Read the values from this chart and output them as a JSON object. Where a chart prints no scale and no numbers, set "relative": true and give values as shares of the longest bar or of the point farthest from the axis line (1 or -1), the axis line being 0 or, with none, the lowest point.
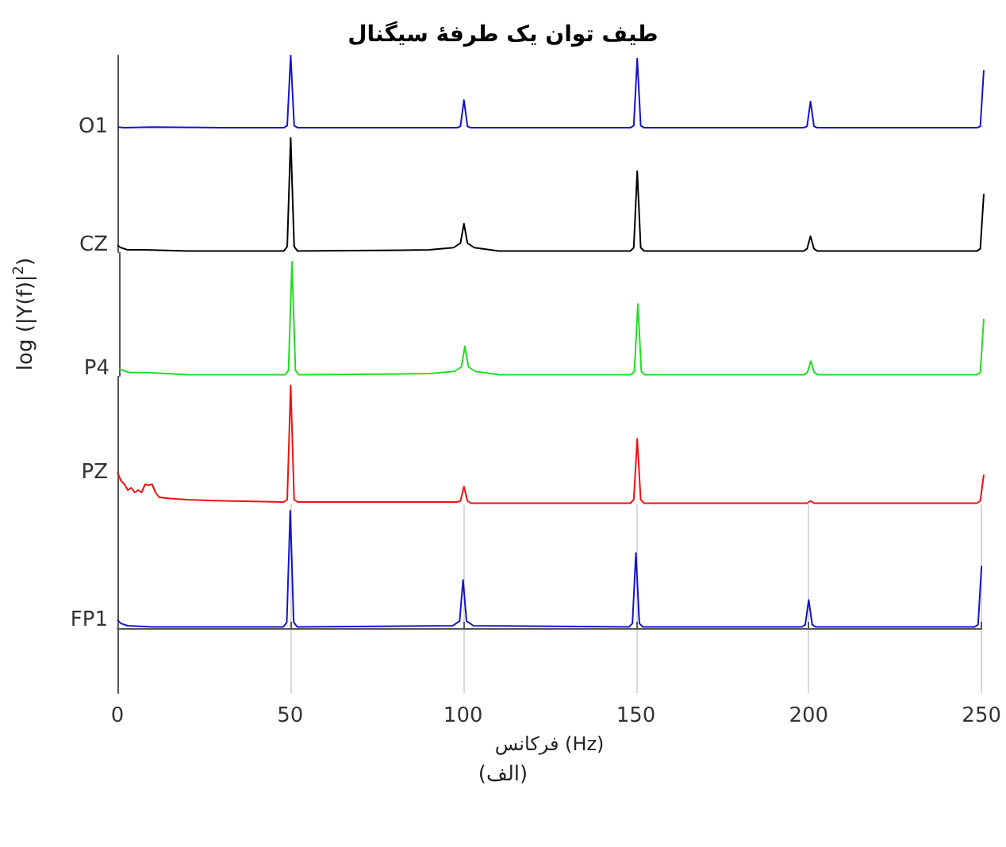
{
  "chart_data": [
    {
      "type": "line",
      "title": "طیف توان یک طرفهٔ سیگنال",
      "relative": true,
      "marker": "none",
      "xlim": [
        0,
        250
      ],
      "tick_labels": false,
      "series": [
        {
          "name": "O1",
          "color": "#1414c8",
          "x": [
            0,
            2,
            10,
            30,
            48,
            49,
            50,
            51,
            52,
            98,
            99,
            100,
            101,
            102,
            148,
            149,
            150,
            151,
            152,
            198,
            199,
            200,
            201,
            202,
            248,
            249,
            250
          ],
          "values": [
            0.02,
            0.01,
            0.02,
            0.01,
            0.01,
            0.04,
            1,
            0.04,
            0.01,
            0.01,
            0.03,
            0.39,
            0.03,
            0.01,
            0.01,
            0.04,
            0.96,
            0.04,
            0.01,
            0.01,
            0.03,
            0.37,
            0.03,
            0.01,
            0.01,
            0.03,
            0.8
          ]
        }
      ]
    },
    {
      "type": "line",
      "relative": true,
      "marker": "none",
      "xlim": [
        0,
        250
      ],
      "tick_labels": false,
      "series": [
        {
          "name": "CZ",
          "color": "#000000",
          "x": [
            0,
            1,
            3,
            8,
            20,
            48,
            49,
            50,
            51,
            52,
            90,
            97,
            99,
            100,
            101,
            103,
            110,
            148,
            149,
            150,
            151,
            152,
            198,
            199,
            200,
            201,
            202,
            248,
            249,
            250
          ],
          "values": [
            0.06,
            0.04,
            0.02,
            0.02,
            0.01,
            0.01,
            0.05,
            1,
            0.05,
            0.01,
            0.02,
            0.04,
            0.08,
            0.25,
            0.08,
            0.04,
            0.01,
            0.01,
            0.04,
            0.71,
            0.04,
            0.01,
            0.01,
            0.03,
            0.14,
            0.03,
            0.01,
            0.01,
            0.03,
            0.51
          ]
        }
      ]
    },
    {
      "type": "line",
      "ylabel": "log (|Y(f)|$^{2}$)",
      "relative": true,
      "marker": "none",
      "xlim": [
        0,
        250
      ],
      "tick_labels": false,
      "series": [
        {
          "name": "P4",
          "color": "#22dd22",
          "x": [
            0,
            1,
            3,
            8,
            20,
            48,
            49,
            50,
            51,
            52,
            90,
            97,
            99,
            100,
            101,
            103,
            110,
            148,
            149,
            150,
            151,
            152,
            198,
            199,
            200,
            201,
            202,
            248,
            249,
            250
          ],
          "values": [
            0.06,
            0.05,
            0.03,
            0.03,
            0.01,
            0.01,
            0.05,
            1,
            0.05,
            0.01,
            0.02,
            0.04,
            0.08,
            0.26,
            0.08,
            0.04,
            0.01,
            0.01,
            0.04,
            0.63,
            0.04,
            0.01,
            0.01,
            0.03,
            0.13,
            0.03,
            0.01,
            0.01,
            0.03,
            0.5
          ]
        }
      ]
    },
    {
      "type": "line",
      "relative": true,
      "marker": "none",
      "xlim": [
        0,
        250
      ],
      "tick_labels": false,
      "series": [
        {
          "name": "PZ",
          "color": "#ee1111",
          "x": [
            0,
            1,
            2,
            3,
            4,
            5,
            6,
            7,
            8,
            9,
            10,
            11,
            12,
            15,
            20,
            30,
            48,
            49,
            50,
            51,
            52,
            98,
            99,
            100,
            101,
            102,
            148,
            149,
            150,
            151,
            152,
            199,
            200,
            201,
            248,
            249,
            250
          ],
          "values": [
            0.27,
            0.2,
            0.17,
            0.12,
            0.14,
            0.1,
            0.12,
            0.1,
            0.17,
            0.16,
            0.17,
            0.1,
            0.06,
            0.05,
            0.04,
            0.03,
            0.02,
            0.04,
            1,
            0.04,
            0.02,
            0.02,
            0.03,
            0.15,
            0.03,
            0.01,
            0.01,
            0.04,
            0.55,
            0.04,
            0.01,
            0.01,
            0.03,
            0.01,
            0.01,
            0.03,
            0.25
          ]
        }
      ]
    },
    {
      "type": "line",
      "xlabel": "فرکانس (Hz)",
      "annotations": [
        "(الف)"
      ],
      "relative": true,
      "marker": "none",
      "grid": "x",
      "tick_labels": "x",
      "xlim": [
        0,
        250
      ],
      "xticks": [
        0,
        50,
        100,
        150,
        200,
        250
      ],
      "series": [
        {
          "name": "FP1",
          "color": "#1414c8",
          "x": [
            0,
            1,
            3,
            10,
            30,
            48,
            49,
            50,
            51,
            52,
            97,
            99,
            100,
            101,
            103,
            148,
            149,
            150,
            151,
            152,
            198,
            199,
            200,
            201,
            202,
            248,
            249,
            250
          ],
          "values": [
            0.07,
            0.04,
            0.02,
            0.01,
            0.01,
            0.01,
            0.05,
            1,
            0.05,
            0.01,
            0.02,
            0.06,
            0.41,
            0.06,
            0.02,
            0.01,
            0.04,
            0.64,
            0.04,
            0.01,
            0.01,
            0.03,
            0.24,
            0.03,
            0.01,
            0.01,
            0.03,
            0.53
          ]
        }
      ]
    }
  ]
}
